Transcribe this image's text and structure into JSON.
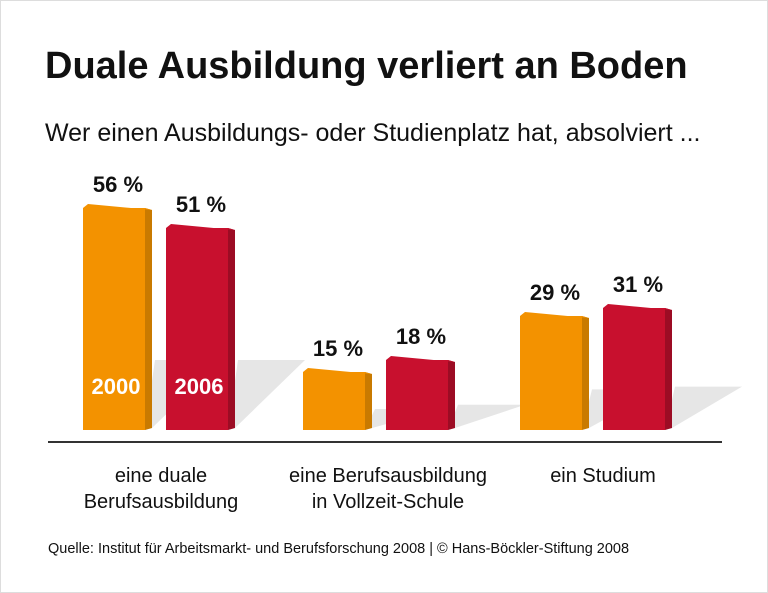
{
  "chart_data": {
    "type": "bar",
    "title": "Duale Ausbildung verliert an Boden",
    "subtitle": "Wer einen Ausbildungs- oder Studienplatz hat, absolviert ...",
    "categories": [
      "eine duale Berufsausbildung",
      "eine Berufsausbildung in Vollzeit-Schule",
      "ein Studium"
    ],
    "category_lines": [
      [
        "eine duale",
        "Berufsausbildung"
      ],
      [
        "eine Berufsausbildung",
        "in Vollzeit-Schule"
      ],
      [
        "ein Studium"
      ]
    ],
    "series": [
      {
        "name": "2000",
        "values": [
          56,
          15,
          29
        ],
        "color": "#f39200"
      },
      {
        "name": "2006",
        "values": [
          51,
          18,
          31
        ],
        "color": "#c8102e"
      }
    ],
    "unit": "%",
    "ylim": [
      0,
      60
    ],
    "grid": false,
    "legend": "inside first bars",
    "source": "Quelle: Institut für Arbeitsmarkt- und Berufsforschung 2008 | © Hans-Böckler-Stiftung 2008"
  }
}
